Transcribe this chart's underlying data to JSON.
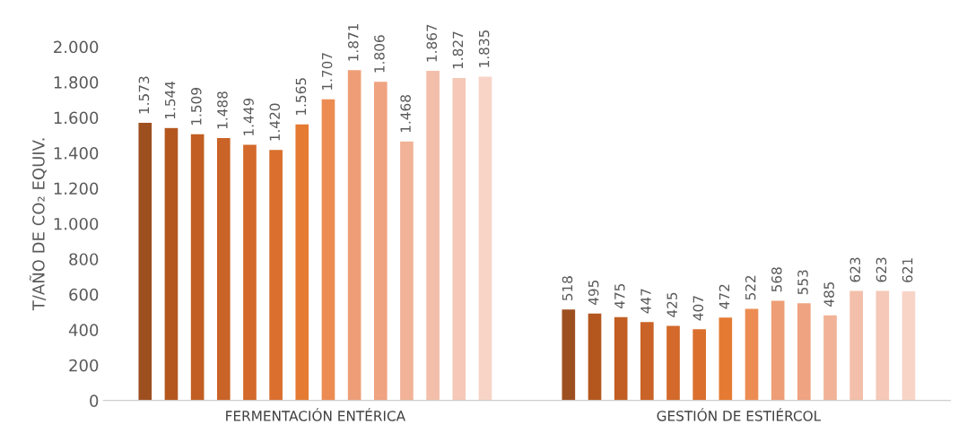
{
  "chart_data": {
    "type": "bar",
    "ylabel": "T/AÑO DE CO₂ EQUIV.",
    "categories": [
      "FERMENTACIÓN ENTÉRICA",
      "GESTIÓN DE ESTIÉRCOL"
    ],
    "ylim": [
      0,
      2000
    ],
    "yticks": [
      {
        "value": 0,
        "label": "0"
      },
      {
        "value": 200,
        "label": "200"
      },
      {
        "value": 400,
        "label": "400"
      },
      {
        "value": 600,
        "label": "600"
      },
      {
        "value": 800,
        "label": "800"
      },
      {
        "value": 1000,
        "label": "1.000"
      },
      {
        "value": 1200,
        "label": "1.200"
      },
      {
        "value": 1400,
        "label": "1.400"
      },
      {
        "value": 1600,
        "label": "1.600"
      },
      {
        "value": 1800,
        "label": "1.800"
      },
      {
        "value": 2000,
        "label": "2.000"
      }
    ],
    "grid": false,
    "legend": false,
    "series": [
      {
        "color": "#9e4f20",
        "values": [
          1573,
          518
        ],
        "value_labels": [
          "1.573",
          "518"
        ]
      },
      {
        "color": "#b3571f",
        "values": [
          1544,
          495
        ],
        "value_labels": [
          "1.544",
          "495"
        ]
      },
      {
        "color": "#c25e23",
        "values": [
          1509,
          475
        ],
        "value_labels": [
          "1.509",
          "475"
        ]
      },
      {
        "color": "#ca6327",
        "values": [
          1488,
          447
        ],
        "value_labels": [
          "1.488",
          "447"
        ]
      },
      {
        "color": "#d3692a",
        "values": [
          1449,
          425
        ],
        "value_labels": [
          "1.449",
          "425"
        ]
      },
      {
        "color": "#da6f2e",
        "values": [
          1420,
          407
        ],
        "value_labels": [
          "1.420",
          "407"
        ]
      },
      {
        "color": "#e57b33",
        "values": [
          1565,
          472
        ],
        "value_labels": [
          "1.565",
          "472"
        ]
      },
      {
        "color": "#ec8c52",
        "values": [
          1707,
          522
        ],
        "value_labels": [
          "1.707",
          "522"
        ]
      },
      {
        "color": "#ee9e77",
        "values": [
          1871,
          568
        ],
        "value_labels": [
          "1.871",
          "568"
        ]
      },
      {
        "color": "#efa381",
        "values": [
          1806,
          553
        ],
        "value_labels": [
          "1.806",
          "553"
        ]
      },
      {
        "color": "#f1b297",
        "values": [
          1468,
          485
        ],
        "value_labels": [
          "1.468",
          "485"
        ]
      },
      {
        "color": "#f3bfaa",
        "values": [
          1867,
          623
        ],
        "value_labels": [
          "1.867",
          "623"
        ]
      },
      {
        "color": "#f5c8b7",
        "values": [
          1827,
          623
        ],
        "value_labels": [
          "1.827",
          "623"
        ]
      },
      {
        "color": "#f8d4c7",
        "values": [
          1835,
          621
        ],
        "value_labels": [
          "1.835",
          "621"
        ]
      }
    ]
  }
}
